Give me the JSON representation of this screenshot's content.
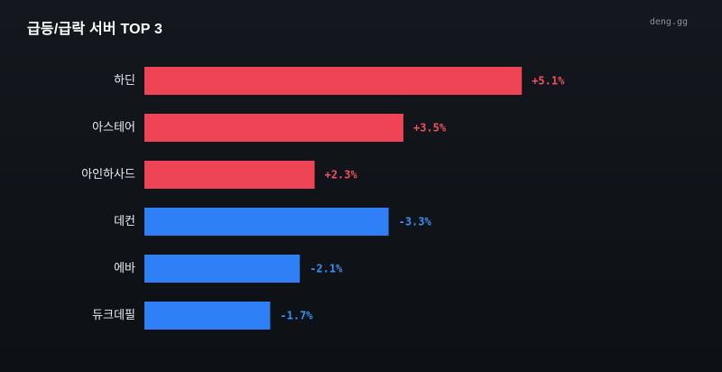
{
  "header": {
    "title": "급등/급락 서버 TOP 3",
    "watermark": "deng.gg"
  },
  "colors": {
    "positive": "#ef4456",
    "negative": "#2f80f6",
    "positive_text": "#f0505e",
    "negative_text": "#3b8ef5"
  },
  "chart_data": {
    "type": "bar",
    "orientation": "horizontal",
    "categories": [
      "하딘",
      "아스테어",
      "아인하사드",
      "데컨",
      "에바",
      "듀크데필"
    ],
    "values": [
      5.1,
      3.5,
      2.3,
      -3.3,
      -2.1,
      -1.7
    ],
    "value_labels": [
      "+5.1%",
      "+3.5%",
      "+2.3%",
      "-3.3%",
      "-2.1%",
      "-1.7%"
    ],
    "bar_length": "absolute value",
    "color_rule": "positive red, negative blue",
    "grid": false,
    "legend": "none"
  }
}
